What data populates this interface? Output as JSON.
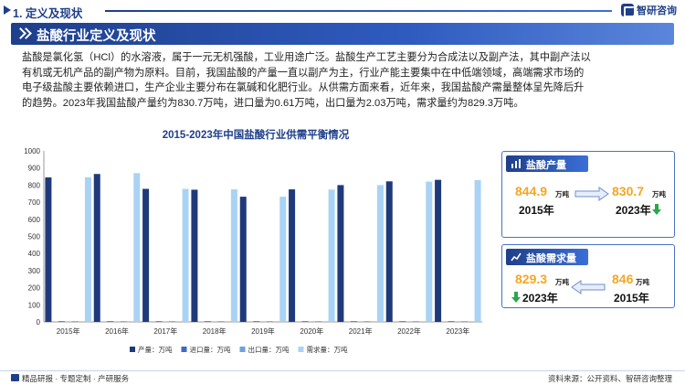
{
  "header": {
    "section_title": "1. 定义及现状",
    "logo_text": "智研咨询"
  },
  "banner": {
    "title": "盐酸行业定义及现状"
  },
  "paragraph": {
    "lines": [
      "盐酸是氯化氢（HCl）的水溶液，属于一元无机强酸，工业用途广泛。盐酸生产工艺主要分为合成法以及副产法，其中副产法以",
      "有机或无机产品的副产物为原料。目前，我国盐酸的产量一直以副产为主，行业产能主要集中在中低端领域，高端需求市场的",
      "电子级盐酸主要依赖进口，生产企业主要分布在氯碱和化肥行业。从供需方面来看，近年来，我国盐酸产需量整体呈先降后升",
      "的趋势。2023年我国盐酸产量约为830.7万吨，进口量为0.61万吨，出口量为2.03万吨，需求量约为829.3万吨。"
    ]
  },
  "chart_data": {
    "type": "bar",
    "title": "2015-2023年中国盐酸行业供需平衡情况",
    "categories": [
      "2015年",
      "2016年",
      "2017年",
      "2018年",
      "2019年",
      "2020年",
      "2021年",
      "2022年",
      "2023年"
    ],
    "series": [
      {
        "name": "产量：万吨",
        "color": "#1f3a7a",
        "values": [
          844.9,
          865,
          778,
          773,
          732,
          775,
          800,
          822,
          830.7
        ]
      },
      {
        "name": "进口量：万吨",
        "color": "#4068c4",
        "values": [
          0.5,
          0.5,
          0.5,
          0.6,
          0.6,
          0.6,
          0.6,
          0.6,
          0.61
        ]
      },
      {
        "name": "出口量：万吨",
        "color": "#6ea0e0",
        "values": [
          1.5,
          1.8,
          1.9,
          2.0,
          2.0,
          2.0,
          2.0,
          2.0,
          2.03
        ]
      },
      {
        "name": "需求量：万吨",
        "color": "#a9d3f5",
        "values": [
          846,
          870,
          778,
          775,
          732,
          774,
          800,
          820,
          829.3
        ]
      }
    ],
    "ylim": [
      0,
      1000
    ],
    "yticks": [
      0,
      100,
      200,
      300,
      400,
      500,
      600,
      700,
      800,
      900,
      1000
    ],
    "grid": false,
    "legend": "bottom"
  },
  "cards": {
    "production": {
      "label": "盐酸产量",
      "left_value": "844.9",
      "left_unit": "万吨",
      "left_year": "2015年",
      "right_value": "830.7",
      "right_unit": "万吨",
      "right_year": "2023年",
      "accent": "#f5a623",
      "down_color": "#2aa84a"
    },
    "demand": {
      "label": "盐酸需求量",
      "left_value": "829.3",
      "left_unit": "万吨",
      "left_year": "2023年",
      "right_value": "846",
      "right_unit": "万吨",
      "right_year": "2015年"
    }
  },
  "footer": {
    "left_text": "精品研报 · 专题定制 · 产研服务",
    "right_text": "资料来源：公开资料、智研咨询整理"
  }
}
